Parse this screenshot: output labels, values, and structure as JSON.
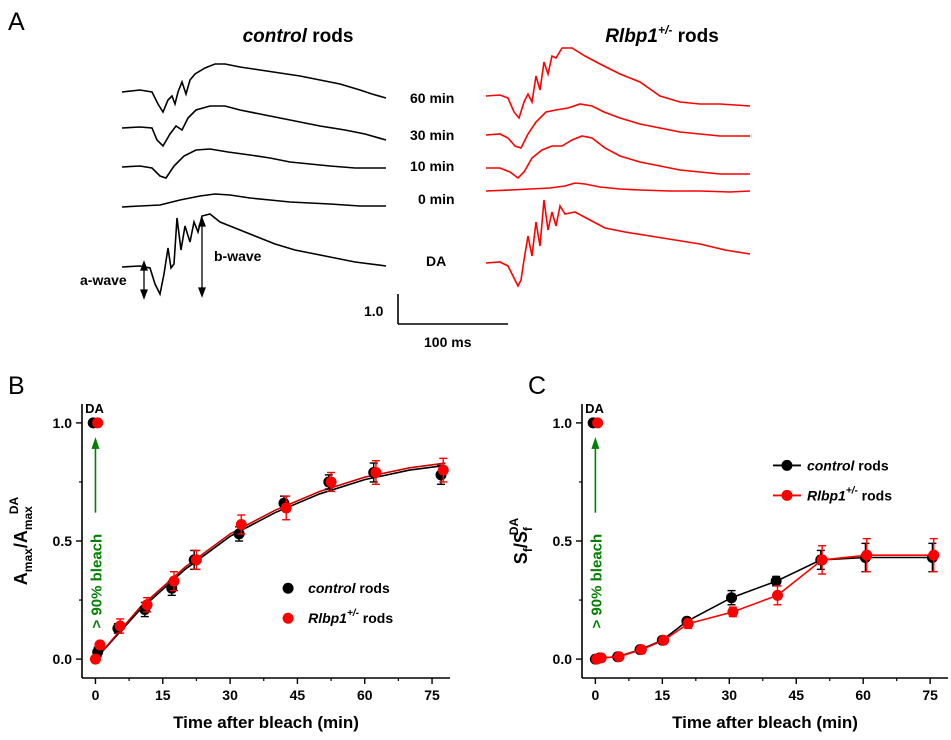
{
  "panels": {
    "a": "A",
    "b": "B",
    "c": "C"
  },
  "erg": {
    "control_title_italic": "control",
    "control_title_rest": " rods",
    "rlbp_title_italic": "Rlbp1",
    "rlbp_title_sup": "+/-",
    "rlbp_title_rest": " rods",
    "time_labels": [
      "60 min",
      "30 min",
      "10 min",
      "0 min",
      "DA"
    ],
    "a_wave": "a-wave",
    "b_wave": "b-wave",
    "scale_amp": "1.0",
    "scale_time": "100 ms",
    "colors": {
      "control": "#000000",
      "rlbp": "#ff0000"
    }
  },
  "bleach_note": "> 90% bleach",
  "da_tag": "DA",
  "xlabel": "Time after bleach (min)",
  "legend": {
    "control_italic": "control",
    "control_rest": " rods",
    "rlbp_italic": "Rlbp1",
    "rlbp_sup": "+/-",
    "rlbp_rest": " rods"
  },
  "chart_data": [
    {
      "type": "scatter",
      "panel": "B",
      "ylabel_main": "A",
      "ylabel_sub": "max",
      "ylabel_den_main": "A",
      "ylabel_den_sub": "max",
      "ylabel_den_sup": "DA",
      "xlim": [
        -3,
        79
      ],
      "ylim": [
        -0.08,
        1.08
      ],
      "xticks": [
        0,
        15,
        30,
        45,
        60,
        75
      ],
      "yticks": [
        0.0,
        0.5,
        1.0
      ],
      "tick_labels_x": [
        "0",
        "15",
        "30",
        "45",
        "60",
        "75"
      ],
      "tick_labels_y": [
        "0.0",
        "0.5",
        "1.0"
      ],
      "series": [
        {
          "name": "control rods",
          "color": "#000000",
          "x": [
            -0.5,
            0.5,
            5,
            11,
            17,
            22,
            32,
            42,
            52,
            62,
            77
          ],
          "y": [
            1.0,
            0.03,
            0.13,
            0.21,
            0.3,
            0.42,
            0.53,
            0.66,
            0.75,
            0.79,
            0.78
          ],
          "err": [
            0,
            0.02,
            0.02,
            0.03,
            0.03,
            0.04,
            0.03,
            0.03,
            0.03,
            0.04,
            0.04
          ]
        },
        {
          "name": "Rlbp1+/- rods",
          "color": "#ff0000",
          "x": [
            0.5,
            0,
            1,
            5.5,
            11.5,
            17.5,
            22.5,
            32.5,
            42.5,
            52.5,
            62.5,
            77.5
          ],
          "y": [
            1.0,
            0.0,
            0.06,
            0.14,
            0.23,
            0.33,
            0.42,
            0.57,
            0.64,
            0.75,
            0.79,
            0.8
          ],
          "err": [
            0,
            0.01,
            0.01,
            0.03,
            0.03,
            0.04,
            0.04,
            0.04,
            0.05,
            0.04,
            0.05,
            0.05
          ]
        }
      ],
      "fits": [
        {
          "color": "#000000",
          "x": [
            0,
            10,
            20,
            30,
            40,
            50,
            60,
            70,
            78
          ],
          "y": [
            0.0,
            0.21,
            0.38,
            0.52,
            0.62,
            0.7,
            0.76,
            0.8,
            0.82
          ]
        },
        {
          "color": "#cc0000",
          "x": [
            0,
            10,
            20,
            30,
            40,
            50,
            60,
            70,
            78
          ],
          "y": [
            0.0,
            0.22,
            0.39,
            0.53,
            0.63,
            0.71,
            0.77,
            0.81,
            0.83
          ]
        }
      ],
      "legend_position": "lower-right"
    },
    {
      "type": "line",
      "panel": "C",
      "ylabel_main": "S",
      "ylabel_sub": "f",
      "ylabel_den_main": "S",
      "ylabel_den_sub": "f",
      "ylabel_den_sup": "DA",
      "xlim": [
        -3,
        79
      ],
      "ylim": [
        -0.08,
        1.08
      ],
      "xticks": [
        0,
        15,
        30,
        45,
        60,
        75
      ],
      "yticks": [
        0.0,
        0.5,
        1.0
      ],
      "tick_labels_x": [
        "0",
        "15",
        "30",
        "45",
        "60",
        "75"
      ],
      "tick_labels_y": [
        "0.0",
        "0.5",
        "1.0"
      ],
      "series": [
        {
          "name": "control rods",
          "color": "#000000",
          "x": [
            0,
            1,
            5,
            10,
            15,
            20.5,
            30.5,
            40.5,
            50.5,
            60.5,
            75.5
          ],
          "y": [
            0.0,
            0.005,
            0.01,
            0.04,
            0.08,
            0.16,
            0.26,
            0.33,
            0.42,
            0.43,
            0.43
          ],
          "err": [
            0,
            0,
            0.005,
            0.01,
            0.01,
            0.015,
            0.03,
            0.02,
            0.04,
            0.06,
            0.06
          ]
        },
        {
          "name": "Rlbp1+/- rods",
          "color": "#ff0000",
          "x": [
            0.3,
            1.3,
            5.3,
            10.3,
            15.3,
            20.8,
            30.8,
            40.8,
            50.8,
            60.8,
            75.8
          ],
          "y": [
            0.0,
            0.005,
            0.01,
            0.04,
            0.08,
            0.15,
            0.2,
            0.27,
            0.42,
            0.44,
            0.44
          ],
          "err": [
            0,
            0,
            0.005,
            0.01,
            0.01,
            0.02,
            0.02,
            0.04,
            0.06,
            0.07,
            0.07
          ]
        }
      ],
      "da_points": [
        {
          "x": -0.5,
          "y": 1.0,
          "color": "#000000"
        },
        {
          "x": 0.5,
          "y": 1.0,
          "color": "#ff0000"
        }
      ],
      "legend_position": "top-right"
    }
  ]
}
